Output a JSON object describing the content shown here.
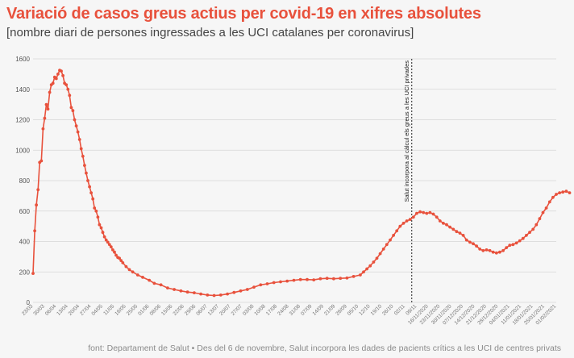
{
  "header": {
    "title": "Variació de casos greus actius per covid-19 en xifres absolutes",
    "subtitle": "[nombre diari de persones ingressades a les UCI catalanes per coronavirus]"
  },
  "footer": {
    "source": "font: Departament de Salut • Des del 6 de novembre, Salut incorpora les dades de pacients crítics a les UCI de centres privats"
  },
  "colors": {
    "series": "#e8513c",
    "grid": "#d6d6d6",
    "annotation": "#222222"
  },
  "chart_data": {
    "type": "line",
    "title": "Variació de casos greus actius per covid-19 en xifres absolutes",
    "subtitle": "[nombre diari de persones ingressades a les UCI catalanes per coronavirus]",
    "xlabel": "",
    "ylabel": "",
    "ylim": [
      0,
      1600
    ],
    "yticks": [
      0,
      200,
      400,
      600,
      800,
      1000,
      1200,
      1400,
      1600
    ],
    "xlim": [
      "2020-03-23",
      "2021-02-01"
    ],
    "grid": true,
    "legend": "none",
    "xtick_labels": [
      "23/03",
      "30/03",
      "06/04",
      "13/04",
      "20/04",
      "27/04",
      "04/05",
      "11/05",
      "18/05",
      "25/05",
      "01/06",
      "08/06",
      "15/06",
      "22/06",
      "29/06",
      "06/07",
      "13/07",
      "20/07",
      "27/07",
      "03/08",
      "10/08",
      "17/08",
      "24/08",
      "31/08",
      "07/09",
      "14/09",
      "21/09",
      "28/09",
      "05/10",
      "12/10",
      "19/10",
      "26/10",
      "02/11",
      "09/11",
      "16/11/2020",
      "23/11/2020",
      "30/11/2020",
      "07/12/2020",
      "14/12/2020",
      "21/12/2020",
      "28/12/2020",
      "04/01/2021",
      "11/01/2021",
      "18/01/2021",
      "25/01/2021",
      "01/02/2021"
    ],
    "annotation": {
      "date": "2020-11-06",
      "text": "Salut incorpora al càlcul els greus a les UCI privades"
    },
    "series": [
      {
        "points": [
          [
            "2020-03-23",
            190
          ],
          [
            "2020-03-24",
            470
          ],
          [
            "2020-03-25",
            640
          ],
          [
            "2020-03-26",
            740
          ],
          [
            "2020-03-27",
            920
          ],
          [
            "2020-03-28",
            930
          ],
          [
            "2020-03-29",
            1140
          ],
          [
            "2020-03-30",
            1210
          ],
          [
            "2020-03-31",
            1300
          ],
          [
            "2020-04-01",
            1270
          ],
          [
            "2020-04-02",
            1380
          ],
          [
            "2020-04-03",
            1430
          ],
          [
            "2020-04-04",
            1440
          ],
          [
            "2020-04-05",
            1480
          ],
          [
            "2020-04-06",
            1470
          ],
          [
            "2020-04-07",
            1500
          ],
          [
            "2020-04-08",
            1525
          ],
          [
            "2020-04-09",
            1520
          ],
          [
            "2020-04-10",
            1490
          ],
          [
            "2020-04-11",
            1440
          ],
          [
            "2020-04-12",
            1430
          ],
          [
            "2020-04-13",
            1400
          ],
          [
            "2020-04-14",
            1360
          ],
          [
            "2020-04-15",
            1280
          ],
          [
            "2020-04-16",
            1260
          ],
          [
            "2020-04-17",
            1200
          ],
          [
            "2020-04-18",
            1160
          ],
          [
            "2020-04-19",
            1120
          ],
          [
            "2020-04-20",
            1070
          ],
          [
            "2020-04-21",
            1010
          ],
          [
            "2020-04-22",
            960
          ],
          [
            "2020-04-23",
            900
          ],
          [
            "2020-04-24",
            850
          ],
          [
            "2020-04-25",
            800
          ],
          [
            "2020-04-26",
            760
          ],
          [
            "2020-04-27",
            720
          ],
          [
            "2020-04-28",
            680
          ],
          [
            "2020-04-29",
            620
          ],
          [
            "2020-04-30",
            600
          ],
          [
            "2020-05-01",
            560
          ],
          [
            "2020-05-02",
            510
          ],
          [
            "2020-05-03",
            490
          ],
          [
            "2020-05-04",
            460
          ],
          [
            "2020-05-05",
            430
          ],
          [
            "2020-05-06",
            410
          ],
          [
            "2020-05-07",
            395
          ],
          [
            "2020-05-08",
            380
          ],
          [
            "2020-05-09",
            365
          ],
          [
            "2020-05-10",
            345
          ],
          [
            "2020-05-11",
            330
          ],
          [
            "2020-05-12",
            310
          ],
          [
            "2020-05-13",
            295
          ],
          [
            "2020-05-14",
            290
          ],
          [
            "2020-05-15",
            275
          ],
          [
            "2020-05-16",
            260
          ],
          [
            "2020-05-18",
            235
          ],
          [
            "2020-05-20",
            215
          ],
          [
            "2020-05-22",
            200
          ],
          [
            "2020-05-25",
            180
          ],
          [
            "2020-05-28",
            165
          ],
          [
            "2020-06-01",
            145
          ],
          [
            "2020-06-04",
            125
          ],
          [
            "2020-06-08",
            115
          ],
          [
            "2020-06-12",
            95
          ],
          [
            "2020-06-16",
            85
          ],
          [
            "2020-06-20",
            75
          ],
          [
            "2020-06-24",
            68
          ],
          [
            "2020-06-28",
            63
          ],
          [
            "2020-07-02",
            55
          ],
          [
            "2020-07-06",
            48
          ],
          [
            "2020-07-10",
            45
          ],
          [
            "2020-07-14",
            48
          ],
          [
            "2020-07-18",
            55
          ],
          [
            "2020-07-22",
            65
          ],
          [
            "2020-07-26",
            75
          ],
          [
            "2020-07-30",
            85
          ],
          [
            "2020-08-03",
            100
          ],
          [
            "2020-08-07",
            115
          ],
          [
            "2020-08-11",
            122
          ],
          [
            "2020-08-15",
            130
          ],
          [
            "2020-08-19",
            135
          ],
          [
            "2020-08-23",
            140
          ],
          [
            "2020-08-27",
            145
          ],
          [
            "2020-08-31",
            150
          ],
          [
            "2020-09-04",
            150
          ],
          [
            "2020-09-08",
            148
          ],
          [
            "2020-09-12",
            155
          ],
          [
            "2020-09-16",
            158
          ],
          [
            "2020-09-20",
            155
          ],
          [
            "2020-09-24",
            158
          ],
          [
            "2020-09-28",
            160
          ],
          [
            "2020-10-02",
            170
          ],
          [
            "2020-10-06",
            180
          ],
          [
            "2020-10-08",
            200
          ],
          [
            "2020-10-10",
            220
          ],
          [
            "2020-10-12",
            240
          ],
          [
            "2020-10-14",
            265
          ],
          [
            "2020-10-16",
            290
          ],
          [
            "2020-10-18",
            320
          ],
          [
            "2020-10-20",
            350
          ],
          [
            "2020-10-22",
            380
          ],
          [
            "2020-10-24",
            410
          ],
          [
            "2020-10-26",
            440
          ],
          [
            "2020-10-28",
            470
          ],
          [
            "2020-10-30",
            500
          ],
          [
            "2020-11-01",
            520
          ],
          [
            "2020-11-03",
            535
          ],
          [
            "2020-11-05",
            545
          ],
          [
            "2020-11-07",
            560
          ],
          [
            "2020-11-09",
            585
          ],
          [
            "2020-11-11",
            595
          ],
          [
            "2020-11-13",
            590
          ],
          [
            "2020-11-15",
            585
          ],
          [
            "2020-11-17",
            590
          ],
          [
            "2020-11-19",
            580
          ],
          [
            "2020-11-21",
            560
          ],
          [
            "2020-11-23",
            535
          ],
          [
            "2020-11-25",
            520
          ],
          [
            "2020-11-27",
            510
          ],
          [
            "2020-11-29",
            495
          ],
          [
            "2020-12-01",
            480
          ],
          [
            "2020-12-03",
            465
          ],
          [
            "2020-12-05",
            455
          ],
          [
            "2020-12-07",
            440
          ],
          [
            "2020-12-09",
            410
          ],
          [
            "2020-12-11",
            395
          ],
          [
            "2020-12-13",
            385
          ],
          [
            "2020-12-15",
            370
          ],
          [
            "2020-12-17",
            350
          ],
          [
            "2020-12-19",
            340
          ],
          [
            "2020-12-21",
            345
          ],
          [
            "2020-12-23",
            340
          ],
          [
            "2020-12-25",
            330
          ],
          [
            "2020-12-27",
            325
          ],
          [
            "2020-12-29",
            330
          ],
          [
            "2020-12-31",
            340
          ],
          [
            "2021-01-02",
            360
          ],
          [
            "2021-01-04",
            375
          ],
          [
            "2021-01-06",
            380
          ],
          [
            "2021-01-08",
            390
          ],
          [
            "2021-01-10",
            405
          ],
          [
            "2021-01-12",
            420
          ],
          [
            "2021-01-14",
            440
          ],
          [
            "2021-01-16",
            460
          ],
          [
            "2021-01-18",
            480
          ],
          [
            "2021-01-20",
            510
          ],
          [
            "2021-01-22",
            550
          ],
          [
            "2021-01-24",
            590
          ],
          [
            "2021-01-26",
            620
          ],
          [
            "2021-01-28",
            660
          ],
          [
            "2021-01-30",
            690
          ],
          [
            "2021-02-01",
            710
          ],
          [
            "2021-02-03",
            720
          ],
          [
            "2021-02-05",
            725
          ],
          [
            "2021-02-07",
            730
          ],
          [
            "2021-02-09",
            720
          ]
        ]
      }
    ]
  }
}
